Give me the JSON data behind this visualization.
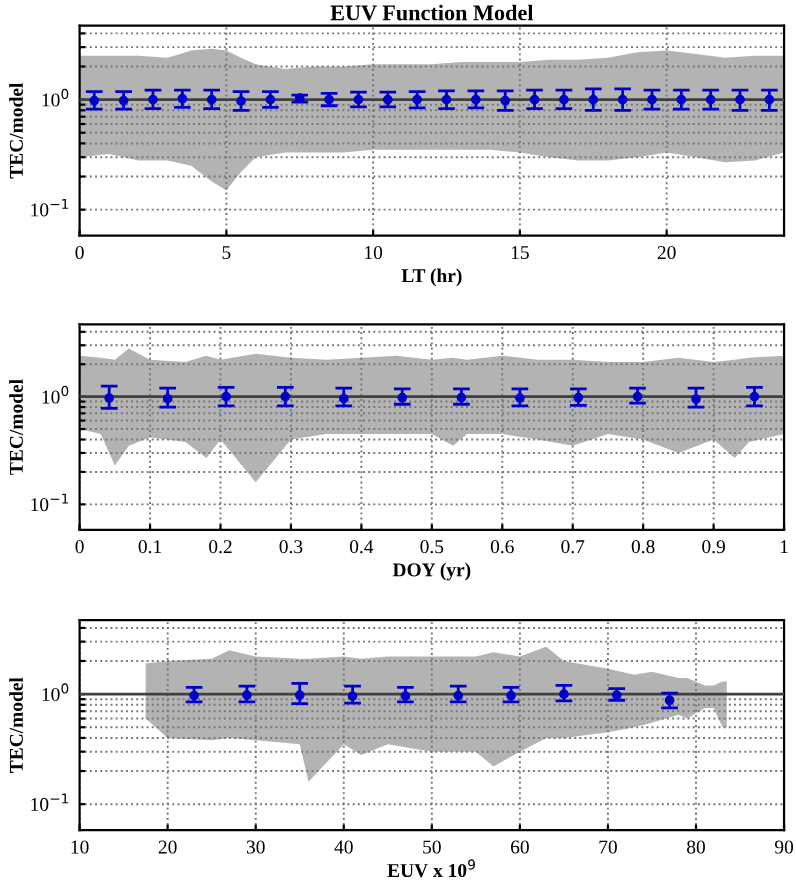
{
  "chart_data": [
    {
      "type": "scatter",
      "title": "EUV Function Model",
      "xlabel": "LT (hr)",
      "ylabel": "TEC/model",
      "xlim": [
        0,
        24
      ],
      "xticks": [
        0,
        5,
        10,
        15,
        20
      ],
      "ylim": [
        0.058,
        4.7
      ],
      "log": true,
      "grid": true,
      "yticks": [
        {
          "value": 0.1,
          "label": "10$^{−1}$"
        },
        {
          "value": 0.2,
          "label": null
        },
        {
          "value": 0.3,
          "label": null
        },
        {
          "value": 0.4,
          "label": null
        },
        {
          "value": 0.5,
          "label": null
        },
        {
          "value": 0.6,
          "label": null
        },
        {
          "value": 0.7,
          "label": null
        },
        {
          "value": 0.8,
          "label": null
        },
        {
          "value": 0.9,
          "label": null
        },
        {
          "value": 1,
          "label": "10$^{0}$"
        },
        {
          "value": 2,
          "label": null
        },
        {
          "value": 3,
          "label": null
        },
        {
          "value": 4,
          "label": null
        }
      ],
      "series": [
        {
          "type": "line",
          "color": "#404040",
          "marker": "none",
          "x": [
            0,
            1,
            2,
            3,
            3.8,
            4.5,
            5,
            5.5,
            6,
            7,
            8,
            9,
            10,
            11,
            12,
            13,
            14,
            15,
            16,
            17,
            18,
            19,
            20,
            21,
            22,
            23,
            24
          ],
          "values": [
            1,
            1,
            1,
            1,
            1,
            1,
            1,
            1,
            1,
            1,
            1,
            1,
            1,
            1,
            1,
            1,
            1,
            1,
            1,
            1,
            1,
            1,
            1,
            1,
            1,
            1,
            1
          ],
          "upper": [
            2.5,
            2.5,
            2.5,
            2.4,
            2.8,
            2.9,
            2.8,
            2.4,
            2.1,
            1.9,
            2.0,
            2.0,
            2.1,
            2.1,
            2.1,
            2.2,
            2.2,
            2.2,
            2.3,
            2.3,
            2.4,
            2.7,
            2.8,
            2.6,
            2.4,
            2.5,
            2.5
          ],
          "lower": [
            0.3,
            0.32,
            0.28,
            0.28,
            0.25,
            0.18,
            0.15,
            0.22,
            0.3,
            0.33,
            0.33,
            0.33,
            0.35,
            0.35,
            0.35,
            0.35,
            0.35,
            0.33,
            0.3,
            0.28,
            0.28,
            0.3,
            0.33,
            0.3,
            0.27,
            0.28,
            0.33
          ]
        },
        {
          "color": "#0000cc",
          "marker": "circle",
          "x": [
            0.5,
            1.5,
            2.5,
            3.5,
            4.5,
            5.5,
            6.5,
            7.5,
            8.5,
            9.5,
            10.5,
            11.5,
            12.5,
            13.5,
            14.5,
            15.5,
            16.5,
            17.5,
            18.5,
            19.5,
            20.5,
            21.5,
            22.5,
            23.5
          ],
          "values": [
            0.98,
            0.98,
            1.0,
            1.02,
            1.0,
            0.97,
            1.0,
            1.03,
            1.0,
            1.0,
            1.0,
            1.0,
            1.0,
            1.0,
            0.98,
            1.0,
            1.0,
            1.0,
            1.0,
            1.0,
            1.0,
            1.0,
            1.0,
            1.0
          ],
          "errors": [
            [
              0.82,
              1.18
            ],
            [
              0.82,
              1.18
            ],
            [
              0.83,
              1.22
            ],
            [
              0.85,
              1.22
            ],
            [
              0.83,
              1.22
            ],
            [
              0.8,
              1.18
            ],
            [
              0.85,
              1.18
            ],
            [
              0.95,
              1.1
            ],
            [
              0.88,
              1.14
            ],
            [
              0.86,
              1.17
            ],
            [
              0.86,
              1.17
            ],
            [
              0.84,
              1.18
            ],
            [
              0.83,
              1.2
            ],
            [
              0.84,
              1.2
            ],
            [
              0.8,
              1.2
            ],
            [
              0.83,
              1.22
            ],
            [
              0.83,
              1.22
            ],
            [
              0.8,
              1.25
            ],
            [
              0.8,
              1.25
            ],
            [
              0.82,
              1.22
            ],
            [
              0.82,
              1.22
            ],
            [
              0.82,
              1.22
            ],
            [
              0.8,
              1.22
            ],
            [
              0.8,
              1.22
            ]
          ]
        }
      ]
    },
    {
      "type": "scatter",
      "xlabel": "DOY (yr)",
      "ylabel": "TEC/model",
      "xlim": [
        0,
        1
      ],
      "xticks": [
        0,
        0.1,
        0.2,
        0.3,
        0.4,
        0.5,
        0.6,
        0.7,
        0.8,
        0.9,
        1
      ],
      "ylim": [
        0.058,
        4.7
      ],
      "log": true,
      "grid": true,
      "yticks": [
        {
          "value": 0.1,
          "label": "10$^{−1}$"
        },
        {
          "value": 0.2,
          "label": null
        },
        {
          "value": 0.3,
          "label": null
        },
        {
          "value": 0.4,
          "label": null
        },
        {
          "value": 0.5,
          "label": null
        },
        {
          "value": 0.6,
          "label": null
        },
        {
          "value": 0.7,
          "label": null
        },
        {
          "value": 0.8,
          "label": null
        },
        {
          "value": 0.9,
          "label": null
        },
        {
          "value": 1,
          "label": "10$^{0}$"
        },
        {
          "value": 2,
          "label": null
        },
        {
          "value": 3,
          "label": null
        },
        {
          "value": 4,
          "label": null
        }
      ],
      "series": [
        {
          "type": "line",
          "color": "#404040",
          "marker": "none",
          "x": [
            0,
            0.03,
            0.05,
            0.07,
            0.1,
            0.15,
            0.18,
            0.2,
            0.25,
            0.3,
            0.35,
            0.4,
            0.45,
            0.5,
            0.53,
            0.55,
            0.6,
            0.65,
            0.7,
            0.75,
            0.8,
            0.85,
            0.9,
            0.93,
            0.95,
            1
          ],
          "values": [
            1,
            1,
            1,
            1,
            1,
            1,
            1,
            1,
            1,
            1,
            1,
            1,
            1,
            1,
            1,
            1,
            1,
            1,
            1,
            1,
            1,
            1,
            1,
            1,
            1,
            1
          ],
          "upper": [
            2.4,
            2.3,
            2.2,
            2.8,
            2.2,
            2.1,
            2.4,
            2.2,
            2.5,
            2.3,
            2.2,
            2.3,
            2.4,
            2.2,
            2.3,
            2.2,
            2.4,
            2.2,
            2.2,
            2.1,
            2.1,
            2.3,
            2.1,
            2.2,
            2.3,
            2.4
          ],
          "lower": [
            0.5,
            0.45,
            0.23,
            0.35,
            0.42,
            0.38,
            0.27,
            0.4,
            0.16,
            0.4,
            0.45,
            0.45,
            0.45,
            0.45,
            0.35,
            0.45,
            0.45,
            0.4,
            0.35,
            0.45,
            0.4,
            0.3,
            0.4,
            0.27,
            0.38,
            0.45
          ]
        },
        {
          "color": "#0000cc",
          "marker": "circle",
          "x": [
            0.042,
            0.125,
            0.208,
            0.292,
            0.375,
            0.458,
            0.542,
            0.625,
            0.708,
            0.792,
            0.875,
            0.958
          ],
          "values": [
            0.97,
            0.96,
            1.0,
            1.0,
            0.96,
            0.98,
            0.98,
            0.97,
            0.98,
            1.0,
            0.95,
            1.0
          ],
          "errors": [
            [
              0.78,
              1.25
            ],
            [
              0.8,
              1.2
            ],
            [
              0.82,
              1.22
            ],
            [
              0.82,
              1.22
            ],
            [
              0.82,
              1.2
            ],
            [
              0.85,
              1.18
            ],
            [
              0.85,
              1.18
            ],
            [
              0.82,
              1.18
            ],
            [
              0.83,
              1.18
            ],
            [
              0.87,
              1.2
            ],
            [
              0.8,
              1.2
            ],
            [
              0.82,
              1.22
            ]
          ]
        }
      ]
    },
    {
      "type": "scatter",
      "xlabel": "EUV x 10$^{9}$",
      "ylabel": "TEC/model",
      "xlim": [
        10,
        90
      ],
      "xticks": [
        10,
        20,
        30,
        40,
        50,
        60,
        70,
        80,
        90
      ],
      "ylim": [
        0.058,
        4.7
      ],
      "log": true,
      "grid": true,
      "yticks": [
        {
          "value": 0.1,
          "label": "10$^{−1}$"
        },
        {
          "value": 0.2,
          "label": null
        },
        {
          "value": 0.3,
          "label": null
        },
        {
          "value": 0.4,
          "label": null
        },
        {
          "value": 0.5,
          "label": null
        },
        {
          "value": 0.6,
          "label": null
        },
        {
          "value": 0.7,
          "label": null
        },
        {
          "value": 0.8,
          "label": null
        },
        {
          "value": 0.9,
          "label": null
        },
        {
          "value": 1,
          "label": "10$^{0}$"
        },
        {
          "value": 2,
          "label": null
        },
        {
          "value": 3,
          "label": null
        },
        {
          "value": 4,
          "label": null
        }
      ],
      "series": [
        {
          "type": "line",
          "color": "#404040",
          "marker": "none",
          "x": [
            10,
            17.5,
            20,
            25,
            27,
            30,
            35,
            36,
            40,
            42,
            45,
            50,
            55,
            57,
            60,
            63,
            65,
            70,
            73,
            75,
            78,
            79,
            81,
            82,
            83,
            83.5,
            90
          ],
          "values": [
            1,
            1,
            1,
            1,
            1,
            1,
            1,
            1,
            1,
            1,
            1,
            1,
            1,
            1,
            1,
            1,
            1,
            1,
            1,
            1,
            1,
            1,
            1,
            1,
            1,
            1,
            1
          ],
          "upper": [
            null,
            1.9,
            2.0,
            2.1,
            2.5,
            2.2,
            2.1,
            2.1,
            2.2,
            2.1,
            2.2,
            2.2,
            2.2,
            2.4,
            2.2,
            2.7,
            2.0,
            1.7,
            1.5,
            1.6,
            1.4,
            1.4,
            1.2,
            1.2,
            1.3,
            1.3,
            null
          ],
          "lower": [
            null,
            0.6,
            0.4,
            0.38,
            0.4,
            0.38,
            0.35,
            0.16,
            0.35,
            0.28,
            0.35,
            0.3,
            0.3,
            0.22,
            0.3,
            0.4,
            0.4,
            0.45,
            0.5,
            0.55,
            0.65,
            0.6,
            0.75,
            0.75,
            0.5,
            0.5,
            null
          ]
        },
        {
          "color": "#0000cc",
          "marker": "circle",
          "x": [
            23,
            29,
            35,
            41,
            47,
            53,
            59,
            65,
            71,
            77
          ],
          "values": [
            0.97,
            0.98,
            0.98,
            0.96,
            0.96,
            0.97,
            0.97,
            1.0,
            0.98,
            0.88
          ],
          "errors": [
            [
              0.85,
              1.15
            ],
            [
              0.85,
              1.18
            ],
            [
              0.82,
              1.25
            ],
            [
              0.83,
              1.18
            ],
            [
              0.85,
              1.15
            ],
            [
              0.85,
              1.18
            ],
            [
              0.85,
              1.15
            ],
            [
              0.87,
              1.2
            ],
            [
              0.88,
              1.12
            ],
            [
              0.75,
              1.02
            ]
          ]
        }
      ]
    }
  ]
}
